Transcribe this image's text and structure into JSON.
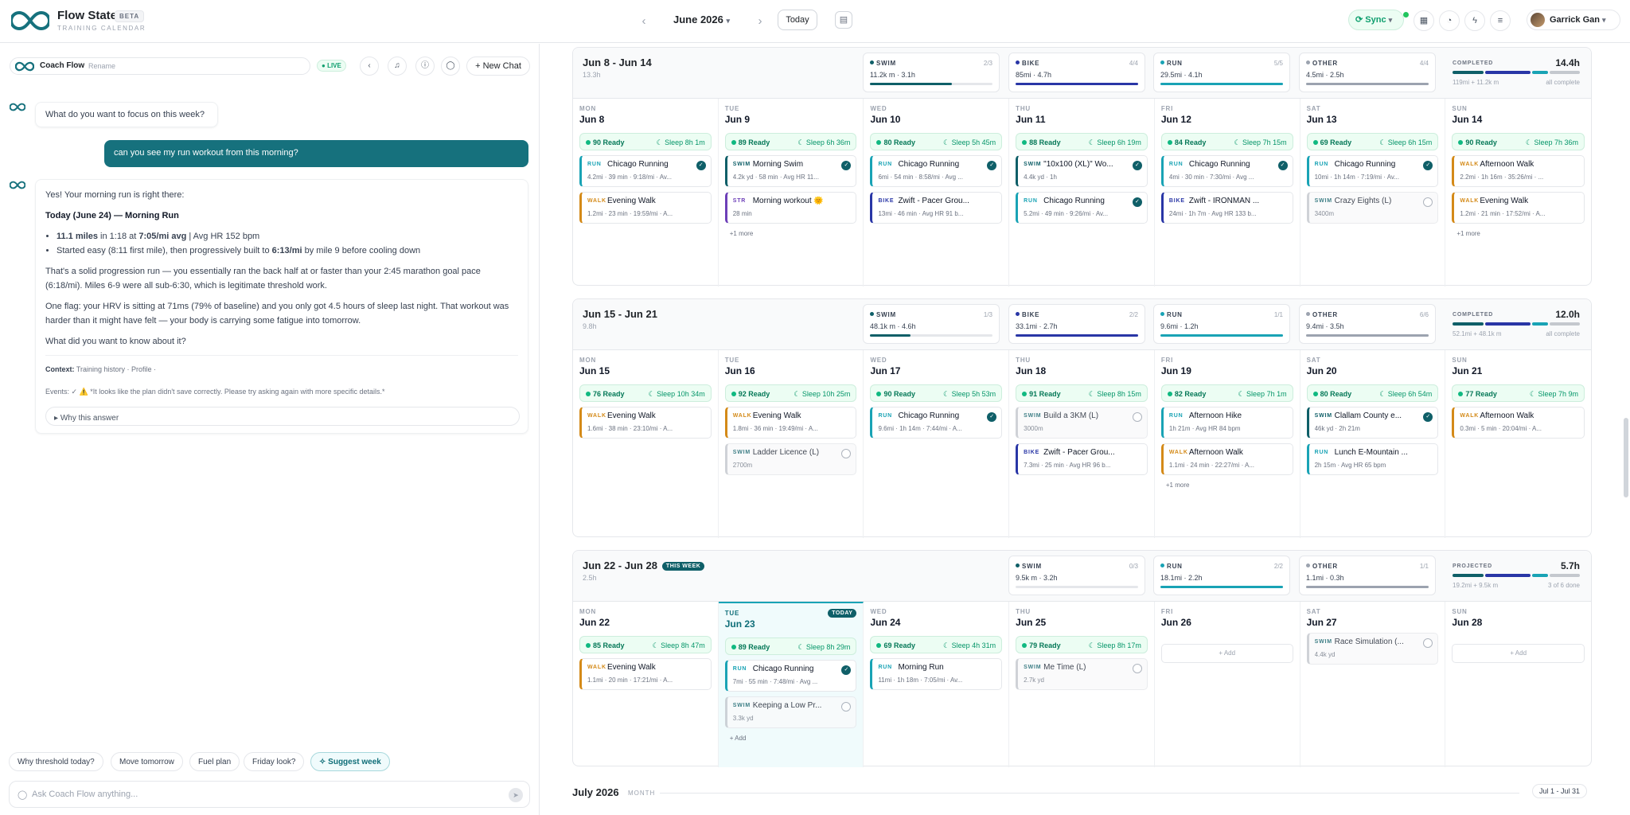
{
  "app": {
    "name": "Flow State",
    "badge": "BETA",
    "subtitle": "TRAINING CALENDAR"
  },
  "nav": {
    "month": "June 2026",
    "today": "Today",
    "sync": "Sync",
    "user": "Garrick Gan"
  },
  "chat": {
    "title": "Coach Flow",
    "rename": "Rename",
    "live": "LIVE",
    "new_chat": "New Chat",
    "q1": "What do you want to focus on this week?",
    "user_msg": "can you see my run workout from this morning?",
    "a_intro": "Yes! Your morning run is right there:",
    "a_head": "Today (June 24) — Morning Run",
    "b1_a": "11.1 miles",
    "b1_b": " in 1:18 at ",
    "b1_c": "7:05/mi avg",
    "b1_d": " | Avg HR 152 bpm",
    "b2_a": "Started easy (8:11 first mile), then progressively built to ",
    "b2_b": "6:13/mi",
    "b2_c": " by mile 9 before cooling down",
    "p1": "That's a solid progression run — you essentially ran the back half at or faster than your 2:45 marathon goal pace (6:18/mi). Miles 6-9 were all sub-6:30, which is legitimate threshold work.",
    "p2": "One flag: your HRV is sitting at 71ms (79% of baseline) and you only got 4.5 hours of sleep last night. That workout was harder than it might have felt — your body is carrying some fatigue into tomorrow.",
    "p3": "What did you want to know about it?",
    "ctx_label": "Context:",
    "ctx_items": "Training history · Profile ·",
    "events": "Events: ✓ ⚠️ *It looks like the plan didn't save correctly. Please try asking again with more specific details.*",
    "why": "Why this answer",
    "suggestions": [
      "Why threshold today?",
      "Move tomorrow",
      "Fuel plan",
      "Friday look?",
      "Suggest week"
    ],
    "placeholder": "Ask Coach Flow anything..."
  },
  "colors": {
    "swim": "#0f5f68",
    "bike": "#2936a6",
    "run": "#19a3b5",
    "walk": "#d48a18",
    "str": "#6d3fb8",
    "other": "#9ca3af",
    "accent": "#0f6e78"
  },
  "weeks": [
    {
      "title": "Jun 8 - Jun 14",
      "hours": "13.3h",
      "this_week": "",
      "sports": [
        {
          "name": "SWIM",
          "count": "2/3",
          "val": "11.2k m · 3.1h",
          "fill": 0.67,
          "color": "#0f5f68"
        },
        {
          "name": "BIKE",
          "count": "4/4",
          "val": "85mi · 4.7h",
          "fill": 1,
          "color": "#2936a6"
        },
        {
          "name": "RUN",
          "count": "5/5",
          "val": "29.5mi · 4.1h",
          "fill": 1,
          "color": "#19a3b5"
        },
        {
          "name": "OTHER",
          "count": "4/4",
          "val": "4.5mi · 2.5h",
          "fill": 1,
          "color": "#9ca3af"
        }
      ],
      "summary": {
        "label": "COMPLETED",
        "hours": "14.4h",
        "sub": "119mi + 11.2k m",
        "stat": "all complete"
      },
      "days": [
        {
          "dow": "MON",
          "date": "Jun 8",
          "ready": "90 Ready",
          "sleep": "Sleep 8h 1m",
          "workouts": [
            {
              "type": "RUN",
              "name": "Chicago Running",
              "meta": "4.2mi · 39 min · 9:18/mi · Av...",
              "done": true
            },
            {
              "type": "WALK",
              "name": "Evening Walk",
              "meta": "1.2mi · 23 min · 19:59/mi · A...",
              "done": false
            }
          ]
        },
        {
          "dow": "TUE",
          "date": "Jun 9",
          "ready": "89 Ready",
          "sleep": "Sleep 6h 36m",
          "workouts": [
            {
              "type": "SWIM",
              "name": "Morning Swim",
              "meta": "4.2k yd · 58 min · Avg HR 11...",
              "done": true
            },
            {
              "type": "STR",
              "name": "Morning workout 🌞",
              "meta": "28 min",
              "done": false
            }
          ],
          "more": "+1 more"
        },
        {
          "dow": "WED",
          "date": "Jun 10",
          "ready": "80 Ready",
          "sleep": "Sleep 5h 45m",
          "workouts": [
            {
              "type": "RUN",
              "name": "Chicago Running",
              "meta": "6mi · 54 min · 8:58/mi · Avg ...",
              "done": true
            },
            {
              "type": "BIKE",
              "name": "Zwift - Pacer Grou...",
              "meta": "13mi · 46 min · Avg HR 91 b...",
              "done": false
            }
          ]
        },
        {
          "dow": "THU",
          "date": "Jun 11",
          "ready": "88 Ready",
          "sleep": "Sleep 6h 19m",
          "workouts": [
            {
              "type": "SWIM",
              "name": "\"10x100 (XL)\" Wo...",
              "meta": "4.4k yd · 1h",
              "done": true
            },
            {
              "type": "RUN",
              "name": "Chicago Running",
              "meta": "5.2mi · 49 min · 9:26/mi · Av...",
              "done": true
            }
          ]
        },
        {
          "dow": "FRI",
          "date": "Jun 12",
          "ready": "84 Ready",
          "sleep": "Sleep 7h 15m",
          "workouts": [
            {
              "type": "RUN",
              "name": "Chicago Running",
              "meta": "4mi · 30 min · 7:30/mi · Avg ...",
              "done": true
            },
            {
              "type": "BIKE",
              "name": "Zwift - IRONMAN ...",
              "meta": "24mi · 1h 7m · Avg HR 133 b...",
              "done": false
            }
          ]
        },
        {
          "dow": "SAT",
          "date": "Jun 13",
          "ready": "69 Ready",
          "sleep": "Sleep 6h 15m",
          "workouts": [
            {
              "type": "RUN",
              "name": "Chicago Running",
              "meta": "10mi · 1h 14m · 7:19/mi · Av...",
              "done": true
            },
            {
              "type": "SWIM",
              "name": "Crazy Eights (L)",
              "meta": "3400m",
              "done": false,
              "pending": true
            }
          ]
        },
        {
          "dow": "SUN",
          "date": "Jun 14",
          "ready": "90 Ready",
          "sleep": "Sleep 7h 36m",
          "workouts": [
            {
              "type": "WALK",
              "name": "Afternoon Walk",
              "meta": "2.2mi · 1h 16m · 35:26/mi · ...",
              "done": false
            },
            {
              "type": "WALK",
              "name": "Evening Walk",
              "meta": "1.2mi · 21 min · 17:52/mi · A...",
              "done": false
            }
          ],
          "more": "+1 more"
        }
      ]
    },
    {
      "title": "Jun 15 - Jun 21",
      "hours": "9.8h",
      "this_week": "",
      "sports": [
        {
          "name": "SWIM",
          "count": "1/3",
          "val": "48.1k m · 4.6h",
          "fill": 0.33,
          "color": "#0f5f68"
        },
        {
          "name": "BIKE",
          "count": "2/2",
          "val": "33.1mi · 2.7h",
          "fill": 1,
          "color": "#2936a6"
        },
        {
          "name": "RUN",
          "count": "1/1",
          "val": "9.6mi · 1.2h",
          "fill": 1,
          "color": "#19a3b5"
        },
        {
          "name": "OTHER",
          "count": "6/6",
          "val": "9.4mi · 3.5h",
          "fill": 1,
          "color": "#9ca3af"
        }
      ],
      "summary": {
        "label": "COMPLETED",
        "hours": "12.0h",
        "sub": "52.1mi + 48.1k m",
        "stat": "all complete"
      },
      "days": [
        {
          "dow": "MON",
          "date": "Jun 15",
          "ready": "76 Ready",
          "sleep": "Sleep 10h 34m",
          "workouts": [
            {
              "type": "WALK",
              "name": "Evening Walk",
              "meta": "1.6mi · 38 min · 23:10/mi · A...",
              "done": false
            }
          ]
        },
        {
          "dow": "TUE",
          "date": "Jun 16",
          "ready": "92 Ready",
          "sleep": "Sleep 10h 25m",
          "workouts": [
            {
              "type": "WALK",
              "name": "Evening Walk",
              "meta": "1.8mi · 36 min · 19:49/mi · A...",
              "done": false
            },
            {
              "type": "SWIM",
              "name": "Ladder Licence (L)",
              "meta": "2700m",
              "done": false,
              "pending": true
            }
          ]
        },
        {
          "dow": "WED",
          "date": "Jun 17",
          "ready": "90 Ready",
          "sleep": "Sleep 5h 53m",
          "workouts": [
            {
              "type": "RUN",
              "name": "Chicago Running",
              "meta": "9.6mi · 1h 14m · 7:44/mi · A...",
              "done": true
            }
          ]
        },
        {
          "dow": "THU",
          "date": "Jun 18",
          "ready": "91 Ready",
          "sleep": "Sleep 8h 15m",
          "workouts": [
            {
              "type": "SWIM",
              "name": "Build a 3KM (L)",
              "meta": "3000m",
              "done": false,
              "pending": true
            },
            {
              "type": "BIKE",
              "name": "Zwift - Pacer Grou...",
              "meta": "7.3mi · 25 min · Avg HR 96 b...",
              "done": false
            }
          ]
        },
        {
          "dow": "FRI",
          "date": "Jun 19",
          "ready": "82 Ready",
          "sleep": "Sleep 7h 1m",
          "workouts": [
            {
              "type": "RUN",
              "name": "Afternoon Hike",
              "meta": "1h 21m · Avg HR 84 bpm",
              "done": false
            },
            {
              "type": "WALK",
              "name": "Afternoon Walk",
              "meta": "1.1mi · 24 min · 22:27/mi · A...",
              "done": false
            }
          ],
          "more": "+1 more"
        },
        {
          "dow": "SAT",
          "date": "Jun 20",
          "ready": "80 Ready",
          "sleep": "Sleep 6h 54m",
          "workouts": [
            {
              "type": "SWIM",
              "name": "Clallam County e...",
              "meta": "46k yd · 2h 21m",
              "done": true
            },
            {
              "type": "RUN",
              "name": "Lunch E-Mountain ...",
              "meta": "2h 15m · Avg HR 65 bpm",
              "done": false
            }
          ]
        },
        {
          "dow": "SUN",
          "date": "Jun 21",
          "ready": "77 Ready",
          "sleep": "Sleep 7h 9m",
          "workouts": [
            {
              "type": "WALK",
              "name": "Afternoon Walk",
              "meta": "0.3mi · 5 min · 20:04/mi · A...",
              "done": false
            }
          ]
        }
      ]
    },
    {
      "title": "Jun 22 - Jun 28",
      "hours": "2.5h",
      "this_week": "THIS WEEK",
      "sports": [
        {
          "name": "SWIM",
          "count": "0/3",
          "val": "9.5k m · 3.2h",
          "fill": 0,
          "color": "#0f5f68"
        },
        {
          "name": "RUN",
          "count": "2/2",
          "val": "18.1mi · 2.2h",
          "fill": 1,
          "color": "#19a3b5"
        },
        {
          "name": "OTHER",
          "count": "1/1",
          "val": "1.1mi · 0.3h",
          "fill": 1,
          "color": "#9ca3af"
        }
      ],
      "summary": {
        "label": "PROJECTED",
        "hours": "5.7h",
        "sub": "19.2mi + 9.5k m",
        "stat": "3 of 6 done"
      },
      "days": [
        {
          "dow": "MON",
          "date": "Jun 22",
          "ready": "85 Ready",
          "sleep": "Sleep 8h 47m",
          "workouts": [
            {
              "type": "WALK",
              "name": "Evening Walk",
              "meta": "1.1mi · 20 min · 17:21/mi · A...",
              "done": false
            }
          ]
        },
        {
          "dow": "TUE",
          "date": "Jun 23",
          "today": "TODAY",
          "ready": "89 Ready",
          "sleep": "Sleep 8h 29m",
          "workouts": [
            {
              "type": "RUN",
              "name": "Chicago Running",
              "meta": "7mi · 55 min · 7:48/mi · Avg ...",
              "done": true
            },
            {
              "type": "SWIM",
              "name": "Keeping a Low Pr...",
              "meta": "3.3k yd",
              "done": false,
              "pending": true
            }
          ],
          "add": "+ Add"
        },
        {
          "dow": "WED",
          "date": "Jun 24",
          "ready": "69 Ready",
          "sleep": "Sleep 4h 31m",
          "workouts": [
            {
              "type": "RUN",
              "name": "Morning Run",
              "meta": "11mi · 1h 18m · 7:05/mi · Av...",
              "done": false
            }
          ]
        },
        {
          "dow": "THU",
          "date": "Jun 25",
          "ready": "79 Ready",
          "sleep": "Sleep 8h 17m",
          "workouts": [
            {
              "type": "SWIM",
              "name": "Me Time (L)",
              "meta": "2.7k yd",
              "done": false,
              "pending": true
            }
          ]
        },
        {
          "dow": "FRI",
          "date": "Jun 26",
          "empty": "+ Add",
          "workouts": []
        },
        {
          "dow": "SAT",
          "date": "Jun 27",
          "workouts": [
            {
              "type": "SWIM",
              "name": "Race Simulation (...",
              "meta": "4.4k yd",
              "done": false,
              "pending": true
            }
          ]
        },
        {
          "dow": "SUN",
          "date": "Jun 28",
          "empty": "+ Add",
          "workouts": []
        }
      ]
    }
  ],
  "july": {
    "title": "July 2026",
    "sub": "MONTH",
    "range": "Jul 1 - Jul 31"
  }
}
